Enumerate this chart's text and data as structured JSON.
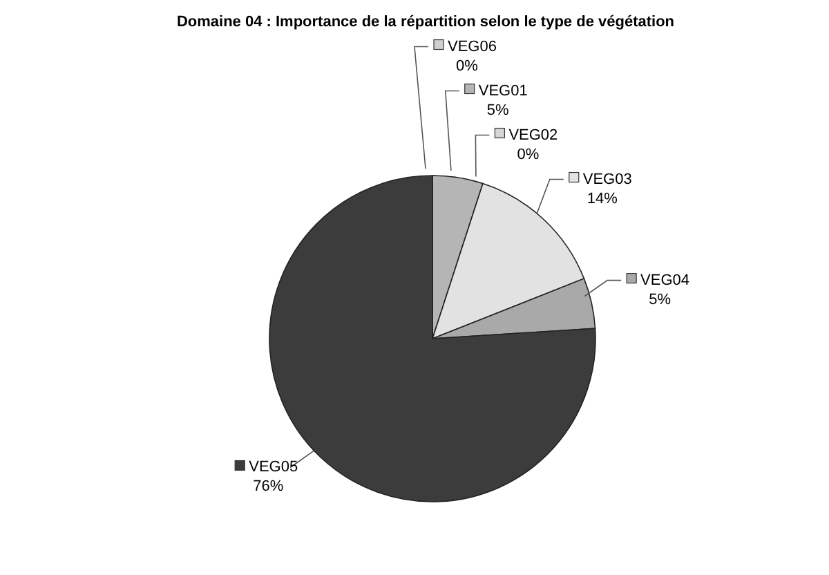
{
  "chart_data": {
    "type": "pie",
    "title": "Domaine 04 : Importance de la répartition selon le type de végétation",
    "categories": [
      "VEG06",
      "VEG01",
      "VEG02",
      "VEG03",
      "VEG04",
      "VEG05"
    ],
    "values": [
      0,
      5,
      0,
      14,
      5,
      76
    ],
    "colors": [
      "#cfcfcf",
      "#b5b5b5",
      "#d6d6d6",
      "#e2e2e2",
      "#a9a9a9",
      "#3c3c3c"
    ],
    "value_labels": [
      "0%",
      "5%",
      "0%",
      "14%",
      "5%",
      "76%"
    ],
    "legend": "right"
  }
}
